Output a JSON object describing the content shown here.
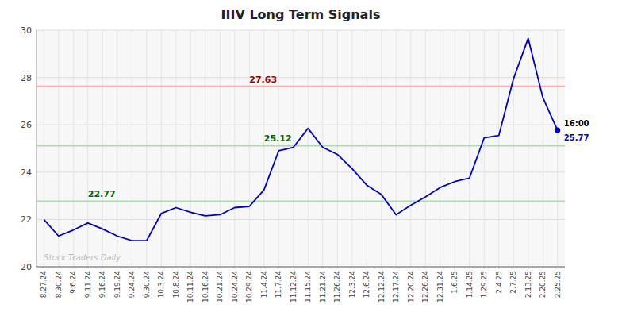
{
  "chart_data": {
    "type": "line",
    "title": "IIIV Long Term Signals",
    "categories": [
      "8.27.24",
      "8.30.24",
      "9.6.24",
      "9.11.24",
      "9.16.24",
      "9.19.24",
      "9.24.24",
      "9.30.24",
      "10.3.24",
      "10.8.24",
      "10.11.24",
      "10.16.24",
      "10.21.24",
      "10.24.24",
      "10.29.24",
      "11.4.24",
      "11.7.24",
      "11.12.24",
      "11.15.24",
      "11.21.24",
      "11.26.24",
      "12.3.24",
      "12.6.24",
      "12.12.24",
      "12.17.24",
      "12.20.24",
      "12.26.24",
      "12.31.24",
      "1.6.25",
      "1.14.25",
      "1.29.25",
      "2.4.25",
      "2.7.25",
      "2.13.25",
      "2.20.25",
      "2.25.25"
    ],
    "values": [
      22.0,
      21.3,
      21.55,
      21.85,
      21.6,
      21.3,
      21.1,
      21.1,
      22.25,
      22.5,
      22.3,
      22.15,
      22.2,
      22.5,
      22.55,
      23.25,
      24.9,
      25.05,
      25.85,
      25.05,
      24.75,
      24.15,
      23.45,
      23.05,
      22.2,
      22.6,
      22.95,
      23.35,
      23.6,
      23.75,
      25.45,
      25.55,
      27.95,
      29.65,
      27.15,
      25.77
    ],
    "color": "#0000cc",
    "ylim": [
      20,
      30
    ],
    "yticks": [
      20,
      22,
      24,
      26,
      28,
      30
    ],
    "grid": true,
    "hlines": [
      {
        "value": 27.63,
        "label": "27.63",
        "color": "#ffaaaa",
        "label_color": "#990000"
      },
      {
        "value": 25.12,
        "label": "25.12",
        "color": "#aaddaa",
        "label_color": "#006600"
      },
      {
        "value": 22.77,
        "label": "22.77",
        "color": "#aaddaa",
        "label_color": "#006600"
      }
    ],
    "last_label": "16:00",
    "last_value_label": "25.77",
    "watermark": "Stock Traders Daily"
  }
}
